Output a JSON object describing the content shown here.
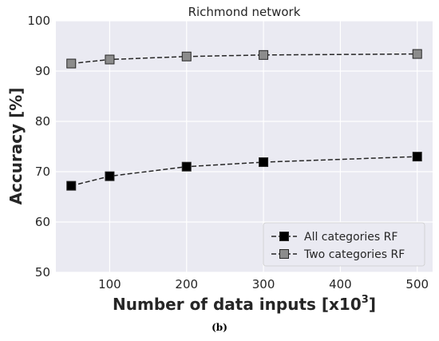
{
  "chart_data": {
    "type": "line",
    "title": "Richmond network",
    "xlabel": "Number of data inputs [x10",
    "xlabel_superscript": "3",
    "xlabel_suffix": "]",
    "ylabel": "Accuracy [%]",
    "xlim": [
      30,
      520
    ],
    "ylim": [
      50,
      100
    ],
    "xticks": [
      100,
      200,
      300,
      400,
      500
    ],
    "yticks": [
      50,
      60,
      70,
      80,
      90,
      100
    ],
    "grid": true,
    "legend_position": "lower-right",
    "x": [
      50,
      100,
      200,
      300,
      500
    ],
    "series": [
      {
        "name": "All categories RF",
        "values": [
          67.2,
          69.1,
          71.0,
          71.9,
          73.0
        ],
        "color": "#000000",
        "marker": "square",
        "line": "dashed"
      },
      {
        "name": "Two categories RF",
        "values": [
          91.5,
          92.3,
          92.9,
          93.2,
          93.4
        ],
        "color": "#8c8c8c",
        "marker": "square",
        "line": "dashed"
      }
    ]
  },
  "caption": "(b)"
}
